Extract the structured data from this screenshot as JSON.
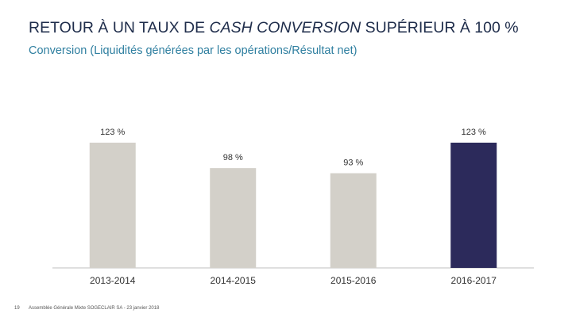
{
  "slide": {
    "title_part1": "RETOUR À UN TAUX DE ",
    "title_italic": "CASH CONVERSION",
    "title_part2": " SUPÉRIEUR À 100 %",
    "subtitle": "Conversion (Liquidités générées par les opérations/Résultat net)",
    "page_number": "19",
    "footer": "Assemblée Générale Mixte SOGECLAIR SA - 23 janvier 2018"
  },
  "colors": {
    "bar_default": "#d3d0c9",
    "bar_highlight": "#2c2a5b",
    "axis": "#bfbfbf",
    "text": "#333333"
  },
  "chart_data": {
    "type": "bar",
    "categories": [
      "2013-2014",
      "2014-2015",
      "2015-2016",
      "2016-2017"
    ],
    "values": [
      123,
      98,
      93,
      123
    ],
    "value_labels": [
      "123 %",
      "98 %",
      "93 %",
      "123 %"
    ],
    "highlight_index": 3,
    "title": "",
    "xlabel": "",
    "ylabel": "",
    "ylim": [
      0,
      130
    ],
    "grid": false
  }
}
